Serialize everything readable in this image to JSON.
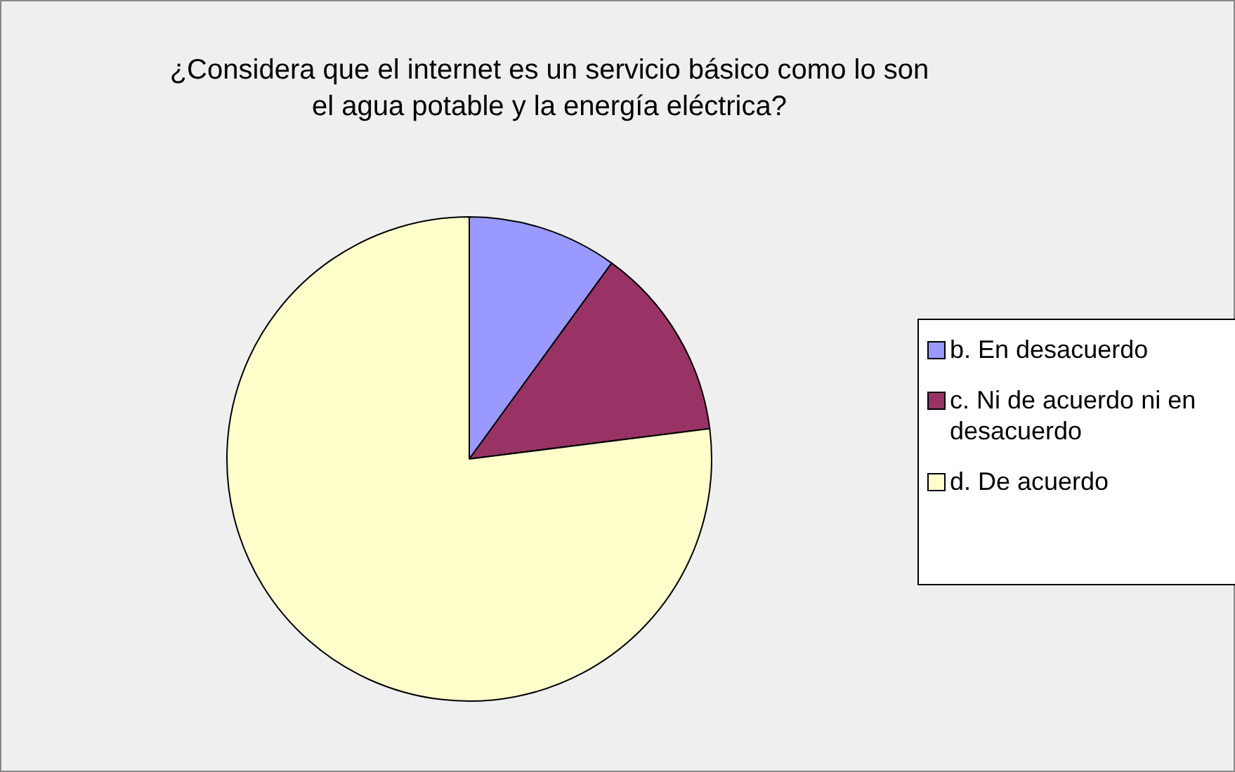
{
  "chart_data": {
    "type": "pie",
    "title": "¿Considera que el internet es un servicio básico como lo son el agua potable y la energía eléctrica?",
    "categories": [
      "b. En desacuerdo",
      "c. Ni de acuerdo ni en desacuerdo",
      "d. De acuerdo"
    ],
    "values": [
      10,
      13,
      77
    ],
    "colors": [
      "#9999ff",
      "#993366",
      "#ffffcc"
    ],
    "legend": "right"
  }
}
